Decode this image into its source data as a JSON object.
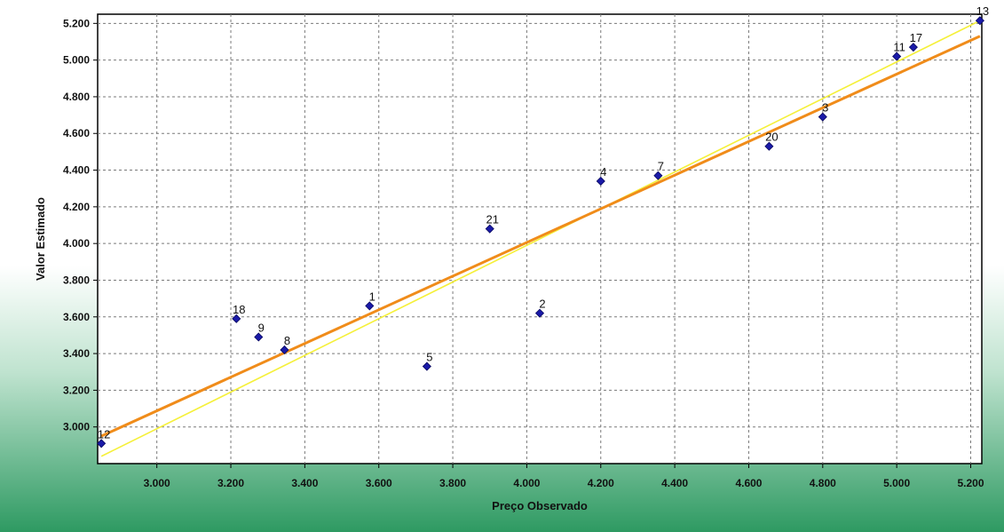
{
  "colors": {
    "plot_background": "#ffffff",
    "gradient_top": "#ffffff",
    "gradient_mid": "#bfe3cf",
    "gradient_bottom": "#2e9a62",
    "grid": "#7a7a7a",
    "marker_fill": "#1a1aa8",
    "marker_stroke": "#0a0a60",
    "ideal_line": "#f5f03a",
    "regression_line": "#f08c1a"
  },
  "chart_data": {
    "type": "scatter",
    "title": "",
    "xlabel": "Preço Observado",
    "ylabel": "Valor Estimado",
    "xlim": [
      2840,
      5230
    ],
    "ylim": [
      2800,
      5250
    ],
    "grid": true,
    "x_ticks": [
      3000,
      3200,
      3400,
      3600,
      3800,
      4000,
      4200,
      4400,
      4600,
      4800,
      5000,
      5200
    ],
    "x_tick_labels": [
      "3.000",
      "3.200",
      "3.400",
      "3.600",
      "3.800",
      "4.000",
      "4.200",
      "4.400",
      "4.600",
      "4.800",
      "5.000",
      "5.200"
    ],
    "y_ticks": [
      3000,
      3200,
      3400,
      3600,
      3800,
      4000,
      4200,
      4400,
      4600,
      4800,
      5000,
      5200
    ],
    "y_tick_labels": [
      "3.000",
      "3.200",
      "3.400",
      "3.600",
      "3.800",
      "4.000",
      "4.200",
      "4.400",
      "4.600",
      "4.800",
      "5.000",
      "5.200"
    ],
    "points": [
      {
        "label": "12",
        "x": 2850,
        "y": 2910
      },
      {
        "label": "18",
        "x": 3215,
        "y": 3590
      },
      {
        "label": "9",
        "x": 3275,
        "y": 3490
      },
      {
        "label": "8",
        "x": 3345,
        "y": 3420
      },
      {
        "label": "1",
        "x": 3575,
        "y": 3660
      },
      {
        "label": "5",
        "x": 3730,
        "y": 3330
      },
      {
        "label": "21",
        "x": 3900,
        "y": 4080
      },
      {
        "label": "2",
        "x": 4035,
        "y": 3620
      },
      {
        "label": "4",
        "x": 4200,
        "y": 4340
      },
      {
        "label": "7",
        "x": 4355,
        "y": 4370
      },
      {
        "label": "20",
        "x": 4655,
        "y": 4530
      },
      {
        "label": "3",
        "x": 4800,
        "y": 4690
      },
      {
        "label": "11",
        "x": 5000,
        "y": 5020
      },
      {
        "label": "17",
        "x": 5045,
        "y": 5070
      },
      {
        "label": "13",
        "x": 5225,
        "y": 5215
      }
    ],
    "lines": [
      {
        "kind": "ideal",
        "points": [
          [
            2850,
            2840
          ],
          [
            5225,
            5215
          ]
        ]
      },
      {
        "kind": "regression",
        "points": [
          [
            2850,
            2950
          ],
          [
            5225,
            5130
          ]
        ]
      }
    ]
  }
}
